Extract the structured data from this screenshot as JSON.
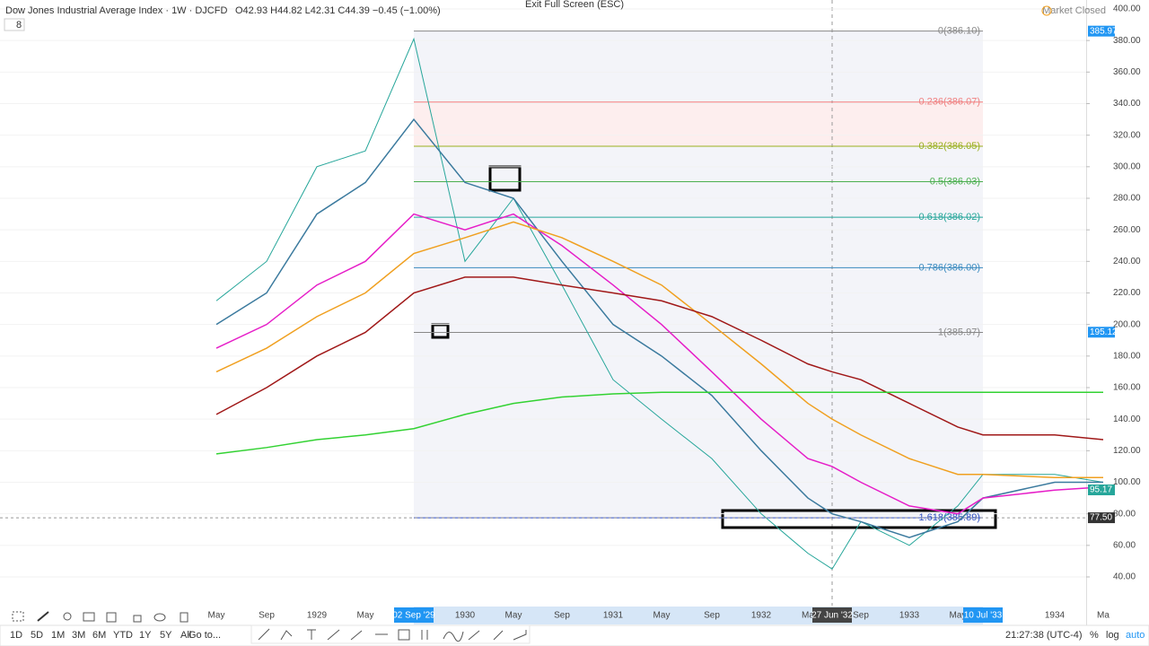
{
  "header": {
    "title": "Dow Jones Industrial Average Index · 1W · DJCFD",
    "ohlc": "O42.93 H44.82 L42.31 C44.39 −0.45 (−1.00%)",
    "exit": "Exit Full Screen (ESC)",
    "status": "Market Closed",
    "counter": "8"
  },
  "chart_data": {
    "type": "line",
    "categories": [
      "May",
      "Sep",
      "1929",
      "May",
      "02 Sep '29",
      "1930",
      "May",
      "Sep",
      "1931",
      "May",
      "Sep",
      "1932",
      "Ma",
      "27 Jun '32",
      "Sep",
      "1933",
      "May",
      "10 Jul '33",
      "1934",
      "Ma"
    ],
    "series": [
      {
        "color": "#26a69a",
        "values": [
          215,
          240,
          300,
          310,
          381,
          240,
          280,
          225,
          165,
          140,
          115,
          80,
          55,
          45,
          75,
          60,
          85,
          105,
          105,
          100
        ]
      },
      {
        "color": "#3b7a9e",
        "values": [
          200,
          220,
          270,
          290,
          330,
          290,
          280,
          240,
          200,
          180,
          155,
          120,
          90,
          80,
          75,
          65,
          75,
          90,
          100,
          100
        ]
      },
      {
        "color": "#e61ec8",
        "values": [
          185,
          200,
          225,
          240,
          270,
          260,
          270,
          250,
          225,
          200,
          170,
          140,
          115,
          110,
          100,
          85,
          80,
          90,
          95,
          97
        ]
      },
      {
        "color": "#f0a020",
        "values": [
          170,
          185,
          205,
          220,
          245,
          255,
          265,
          255,
          240,
          225,
          200,
          175,
          150,
          140,
          130,
          115,
          105,
          105,
          103,
          103
        ]
      },
      {
        "color": "#a01818",
        "values": [
          143,
          160,
          180,
          195,
          220,
          230,
          230,
          225,
          220,
          215,
          205,
          190,
          175,
          170,
          165,
          150,
          135,
          130,
          130,
          127
        ]
      },
      {
        "color": "#32d232",
        "values": [
          118,
          122,
          127,
          130,
          134,
          143,
          150,
          154,
          156,
          157,
          157,
          157,
          157,
          157,
          157,
          157,
          157,
          157,
          157,
          157
        ]
      }
    ],
    "ylim": [
      40,
      400
    ],
    "yticks": [
      {
        "value": 40,
        "label": "40.00"
      },
      {
        "value": 60,
        "label": "60.00"
      },
      {
        "value": 80,
        "label": "80.00"
      },
      {
        "value": 100,
        "label": "100.00"
      },
      {
        "value": 120,
        "label": "120.00"
      },
      {
        "value": 140,
        "label": "140.00"
      },
      {
        "value": 160,
        "label": "160.00"
      },
      {
        "value": 180,
        "label": "180.00"
      },
      {
        "value": 200,
        "label": "200.00"
      },
      {
        "value": 220,
        "label": "220.00"
      },
      {
        "value": 240,
        "label": "240.00"
      },
      {
        "value": 260,
        "label": "260.00"
      },
      {
        "value": 280,
        "label": "280.00"
      },
      {
        "value": 300,
        "label": "300.00"
      },
      {
        "value": 320,
        "label": "320.00"
      },
      {
        "value": 340,
        "label": "340.00"
      },
      {
        "value": 360,
        "label": "360.00"
      },
      {
        "value": 380,
        "label": "380.00"
      },
      {
        "value": 400,
        "label": "400.00"
      }
    ],
    "fib_levels": [
      {
        "value": 386,
        "label": "0(386.10)",
        "color": "#888888"
      },
      {
        "value": 341,
        "label": "0.236(386.07)",
        "color": "#f08080"
      },
      {
        "value": 313,
        "label": "0.382(386.05)",
        "color": "#9ab020"
      },
      {
        "value": 290.5,
        "label": "0.5(386.03)",
        "color": "#4caf50"
      },
      {
        "value": 268,
        "label": "0.618(386.02)",
        "color": "#26a69a"
      },
      {
        "value": 236,
        "label": "0.786(386.00)",
        "color": "#3b8bbf"
      },
      {
        "value": 195,
        "label": "1(385.97)",
        "color": "#888888"
      },
      {
        "value": 77.5,
        "label": "1.618(385.89)",
        "color": "#3050c0"
      }
    ],
    "price_labels": [
      {
        "value": 385.97,
        "label": "385.97",
        "color": "#2196f3"
      },
      {
        "value": 195.12,
        "label": "195.12",
        "color": "#2196f3"
      },
      {
        "value": 95.17,
        "label": "95.17",
        "color": "#26a69a"
      },
      {
        "value": 77.5,
        "label": "77.50",
        "color": "#333333"
      }
    ]
  },
  "footer": {
    "ranges": [
      "1D",
      "5D",
      "1M",
      "3M",
      "6M",
      "YTD",
      "1Y",
      "5Y",
      "All"
    ],
    "goto": "Go to...",
    "clock": "21:27:38 (UTC-4)",
    "percent": "%",
    "log": "log",
    "auto": "auto"
  }
}
